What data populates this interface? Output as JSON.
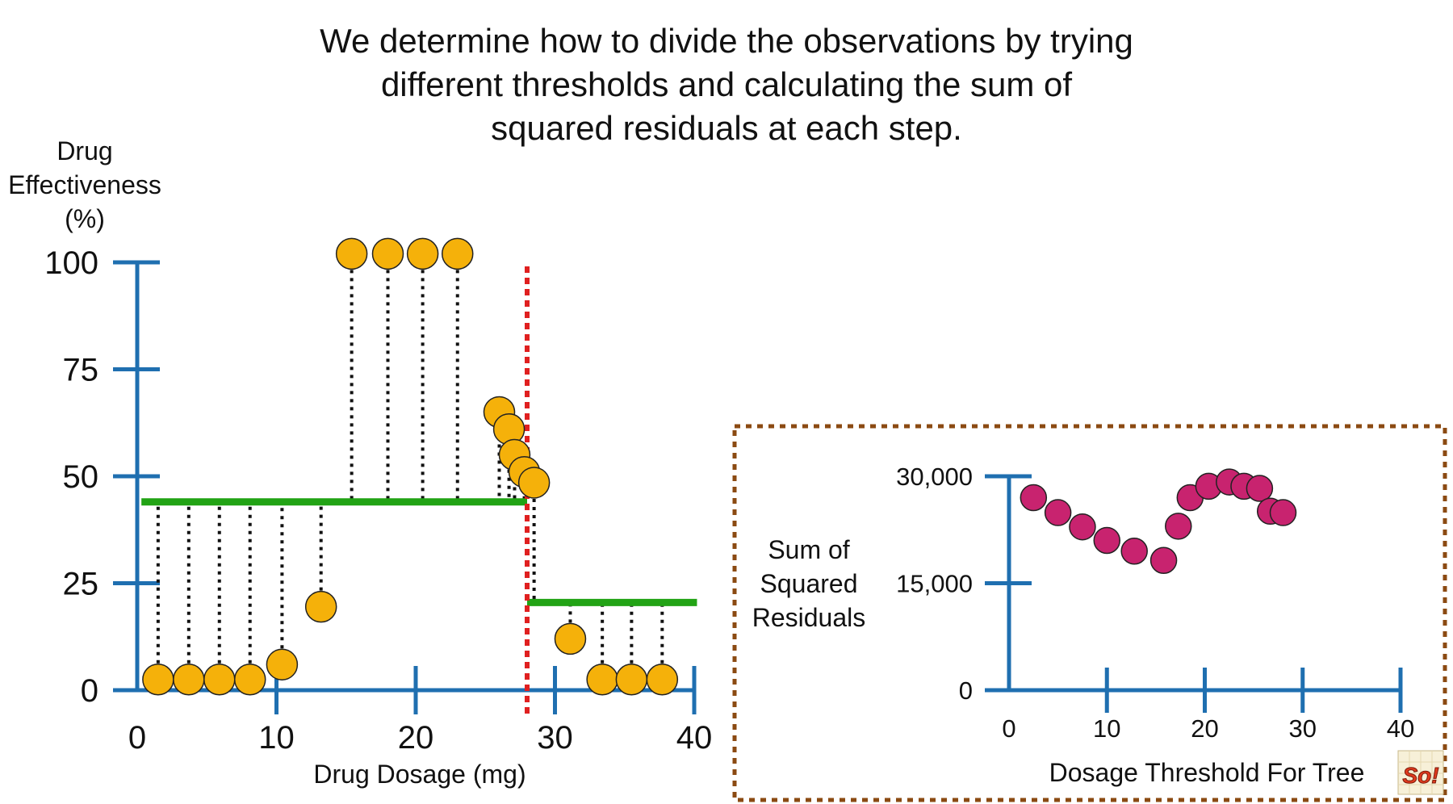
{
  "title_lines": [
    "We determine how to divide the observations by trying",
    "different thresholds and calculating the sum of",
    "squared residuals at each step."
  ],
  "colors": {
    "axis": "#1f6fb0",
    "point": "#f5b10a",
    "ssr_point": "#c8236f",
    "mean_line": "#22a315",
    "threshold_line": "#e02020",
    "inset_border": "#8b4a12"
  },
  "chart_data": [
    {
      "type": "scatter",
      "title": "",
      "xlabel": "Drug Dosage (mg)",
      "ylabel_lines": [
        "Drug",
        "Effectiveness",
        "(%)"
      ],
      "xlim": [
        0,
        40
      ],
      "ylim": [
        0,
        100
      ],
      "x_ticks": [
        "0",
        "10",
        "20",
        "30",
        "40"
      ],
      "y_ticks": [
        "0",
        "25",
        "50",
        "75",
        "100"
      ],
      "points": [
        {
          "x": 1.5,
          "y": 2.5
        },
        {
          "x": 3.7,
          "y": 2.5
        },
        {
          "x": 5.9,
          "y": 2.5
        },
        {
          "x": 8.1,
          "y": 2.5
        },
        {
          "x": 10.4,
          "y": 6
        },
        {
          "x": 13.2,
          "y": 19.5
        },
        {
          "x": 15.4,
          "y": 102
        },
        {
          "x": 18,
          "y": 102
        },
        {
          "x": 20.5,
          "y": 102
        },
        {
          "x": 23,
          "y": 102
        },
        {
          "x": 26,
          "y": 65
        },
        {
          "x": 26.7,
          "y": 61
        },
        {
          "x": 27.1,
          "y": 55
        },
        {
          "x": 27.8,
          "y": 51
        },
        {
          "x": 28.5,
          "y": 48.5
        },
        {
          "x": 31.1,
          "y": 12
        },
        {
          "x": 33.4,
          "y": 2.5
        },
        {
          "x": 35.5,
          "y": 2.5
        },
        {
          "x": 37.7,
          "y": 2.5
        }
      ],
      "threshold": 28,
      "left_mean": 44,
      "right_mean": 20.5,
      "residual_line_style": "dotted"
    },
    {
      "type": "scatter",
      "title": "",
      "xlabel": "Dosage Threshold For Tree",
      "ylabel_lines": [
        "Sum of",
        "Squared",
        "Residuals"
      ],
      "xlim": [
        0,
        40
      ],
      "ylim": [
        0,
        30000
      ],
      "x_ticks": [
        "0",
        "10",
        "20",
        "30",
        "40"
      ],
      "y_ticks": [
        "0",
        "15,000",
        "30,000"
      ],
      "points": [
        {
          "x": 2.5,
          "y": 27000
        },
        {
          "x": 5,
          "y": 24900
        },
        {
          "x": 7.5,
          "y": 22900
        },
        {
          "x": 10,
          "y": 21000
        },
        {
          "x": 12.8,
          "y": 19500
        },
        {
          "x": 15.8,
          "y": 18200
        },
        {
          "x": 17.3,
          "y": 23000
        },
        {
          "x": 18.5,
          "y": 27000
        },
        {
          "x": 20.4,
          "y": 28600
        },
        {
          "x": 22.5,
          "y": 29200
        },
        {
          "x": 24,
          "y": 28600
        },
        {
          "x": 25.6,
          "y": 28300
        },
        {
          "x": 26.7,
          "y": 25100
        },
        {
          "x": 28,
          "y": 24900
        }
      ]
    }
  ],
  "logo": {
    "icon": "statquest-logo-icon",
    "text": "So!"
  }
}
